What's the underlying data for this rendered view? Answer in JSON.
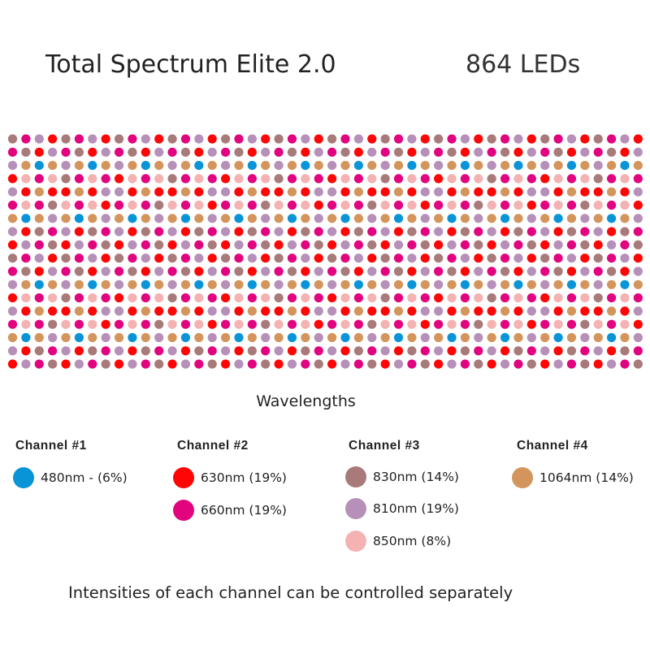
{
  "title": "Total Spectrum Elite 2.0",
  "led_count": "864 LEDs",
  "wavelengths_label": "Wavelengths",
  "footer": "Intensities of each channel can be controlled separately",
  "colors": {
    "B": "#0a94d8",
    "R": "#ff0606",
    "M": "#e2037f",
    "N": "#a87a7a",
    "L": "#b690b8",
    "P": "#f4b2b2",
    "O": "#d4955c"
  },
  "grid": {
    "columns": 48,
    "rows": 18,
    "pattern": [
      "NMLRNMLR",
      "MNRLMNRL",
      "LOBOLOBO",
      "RPMPNMPM",
      "LRORRORL",
      "MPMNPMPR",
      "OBOLOBOL",
      "LRNMLRNM",
      "RLMNRLMN"
    ]
  },
  "channels": [
    {
      "label": "Channel #1",
      "items": [
        {
          "text": "480nm - (6%)",
          "color": "#0a94d8"
        }
      ]
    },
    {
      "label": "Channel #2",
      "items": [
        {
          "text": "630nm (19%)",
          "color": "#ff0606"
        },
        {
          "text": "660nm (19%)",
          "color": "#e2037f"
        }
      ]
    },
    {
      "label": "Channel #3",
      "items": [
        {
          "text": "830nm (14%)",
          "color": "#a87a7a"
        },
        {
          "text": "810nm (19%)",
          "color": "#b690b8"
        },
        {
          "text": "850nm (8%)",
          "color": "#f4b2b2"
        }
      ]
    },
    {
      "label": "Channel #4",
      "items": [
        {
          "text": "1064nm (14%)",
          "color": "#d4955c"
        }
      ]
    }
  ]
}
